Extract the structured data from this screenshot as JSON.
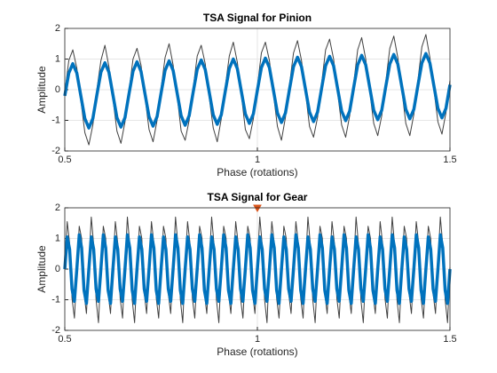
{
  "chart_data": [
    {
      "type": "line",
      "title": "TSA Signal for Pinion",
      "xlabel": "Phase (rotations)",
      "ylabel": "Amplitude",
      "xlim": [
        0.5,
        1.5
      ],
      "ylim": [
        -2,
        2
      ],
      "xticks": [
        0.5,
        1,
        1.5
      ],
      "yticks": [
        -2,
        -1,
        0,
        1,
        2
      ],
      "grid": true,
      "x": [
        0.5,
        0.5104,
        0.5208,
        0.5313,
        0.5417,
        0.5521,
        0.5625,
        0.5729,
        0.5833,
        0.5938,
        0.6042,
        0.6146,
        0.625,
        0.6354,
        0.6458,
        0.6563,
        0.6667,
        0.6771,
        0.6875,
        0.6979,
        0.7083,
        0.7188,
        0.7292,
        0.7396,
        0.75,
        0.7604,
        0.7708,
        0.7813,
        0.7917,
        0.8021,
        0.8125,
        0.8229,
        0.8333,
        0.8438,
        0.8542,
        0.8646,
        0.875,
        0.8854,
        0.8958,
        0.9063,
        0.9167,
        0.9271,
        0.9375,
        0.9479,
        0.9583,
        0.9688,
        0.9792,
        0.9896,
        1,
        1.0104,
        1.0208,
        1.0313,
        1.0417,
        1.0521,
        1.0625,
        1.0729,
        1.0833,
        1.0938,
        1.1042,
        1.1146,
        1.125,
        1.1354,
        1.1458,
        1.1563,
        1.1667,
        1.1771,
        1.1875,
        1.1979,
        1.2083,
        1.2188,
        1.2292,
        1.2396,
        1.25,
        1.2604,
        1.2708,
        1.2813,
        1.2917,
        1.3021,
        1.3125,
        1.3229,
        1.3333,
        1.3438,
        1.3542,
        1.3646,
        1.375,
        1.3854,
        1.3958,
        1.4063,
        1.4167,
        1.4271,
        1.4375,
        1.4479,
        1.4583,
        1.4688,
        1.4792,
        1.4896,
        1.5
      ],
      "series": [
        {
          "color": "#404040",
          "width": 1,
          "values": [
            -0.1,
            0.95,
            1.3,
            0.7,
            -0.35,
            -1.4,
            -1.8,
            -1.15,
            0.0,
            0.95,
            1.45,
            0.75,
            -0.3,
            -1.35,
            -1.75,
            -1.05,
            -0.05,
            1.0,
            1.35,
            0.8,
            -0.25,
            -1.3,
            -1.7,
            -1.0,
            0.05,
            1.05,
            1.5,
            0.8,
            -0.2,
            -1.35,
            -1.65,
            -1.0,
            0.05,
            1.1,
            1.45,
            0.85,
            -0.25,
            -1.25,
            -1.7,
            -0.95,
            0.1,
            1.1,
            1.55,
            0.9,
            -0.15,
            -1.3,
            -1.6,
            -0.95,
            0.1,
            1.2,
            1.55,
            0.95,
            -0.15,
            -1.2,
            -1.65,
            -0.9,
            0.15,
            1.2,
            1.6,
            0.95,
            -0.1,
            -1.2,
            -1.55,
            -0.9,
            0.2,
            1.3,
            1.65,
            1.0,
            -0.1,
            -1.15,
            -1.55,
            -0.85,
            0.2,
            1.3,
            1.7,
            1.0,
            -0.05,
            -1.1,
            -1.5,
            -0.85,
            0.25,
            1.35,
            1.75,
            1.05,
            0.0,
            -1.1,
            -1.5,
            -0.8,
            0.3,
            1.4,
            1.8,
            1.05,
            0.0,
            -1.05,
            -1.45,
            -0.75,
            0.3
          ]
        },
        {
          "color": "#0072bd",
          "width": 3.5,
          "values": [
            -0.2,
            0.54,
            0.85,
            0.54,
            -0.2,
            -0.94,
            -1.25,
            -0.94,
            -0.17,
            0.57,
            0.88,
            0.57,
            -0.17,
            -0.91,
            -1.22,
            -0.91,
            -0.14,
            0.6,
            0.91,
            0.6,
            -0.14,
            -0.88,
            -1.19,
            -0.88,
            -0.11,
            0.63,
            0.94,
            0.63,
            -0.11,
            -0.85,
            -1.16,
            -0.85,
            -0.08,
            0.66,
            0.97,
            0.66,
            -0.08,
            -0.82,
            -1.13,
            -0.82,
            -0.05,
            0.69,
            1.0,
            0.69,
            -0.05,
            -0.79,
            -1.1,
            -0.79,
            -0.02,
            0.72,
            1.03,
            0.72,
            -0.02,
            -0.76,
            -1.07,
            -0.76,
            0.01,
            0.75,
            1.06,
            0.75,
            0.01,
            -0.73,
            -1.04,
            -0.73,
            0.04,
            0.78,
            1.09,
            0.78,
            0.04,
            -0.7,
            -1.01,
            -0.7,
            0.07,
            0.81,
            1.12,
            0.81,
            0.07,
            -0.67,
            -0.98,
            -0.67,
            0.1,
            0.84,
            1.15,
            0.84,
            0.1,
            -0.64,
            -0.95,
            -0.64,
            0.13,
            0.87,
            1.18,
            0.87,
            0.13,
            -0.61,
            -0.92,
            -0.61,
            0.16
          ]
        }
      ]
    },
    {
      "type": "line",
      "title": "TSA Signal for Gear",
      "xlabel": "Phase (rotations)",
      "ylabel": "Amplitude",
      "xlim": [
        0.5,
        1.5
      ],
      "ylim": [
        -2,
        2
      ],
      "xticks": [
        0.5,
        1,
        1.5
      ],
      "yticks": [
        -2,
        -1,
        0,
        1,
        2
      ],
      "grid": true,
      "x": [
        0.5,
        0.50625,
        0.5125,
        0.51875,
        0.525,
        0.53125,
        0.5375,
        0.54375,
        0.55,
        0.55625,
        0.5625,
        0.56875,
        0.575,
        0.58125,
        0.5875,
        0.59375,
        0.6,
        0.60625,
        0.6125,
        0.61875,
        0.625,
        0.63125,
        0.6375,
        0.64375,
        0.65,
        0.65625,
        0.6625,
        0.66875,
        0.675,
        0.68125,
        0.6875,
        0.69375,
        0.7,
        0.70625,
        0.7125,
        0.71875,
        0.725,
        0.73125,
        0.7375,
        0.74375,
        0.75,
        0.75625,
        0.7625,
        0.76875,
        0.775,
        0.78125,
        0.7875,
        0.79375,
        0.8,
        0.80625,
        0.8125,
        0.81875,
        0.825,
        0.83125,
        0.8375,
        0.84375,
        0.85,
        0.85625,
        0.8625,
        0.86875,
        0.875,
        0.88125,
        0.8875,
        0.89375,
        0.9,
        0.90625,
        0.9125,
        0.91875,
        0.925,
        0.93125,
        0.9375,
        0.94375,
        0.95,
        0.95625,
        0.9625,
        0.96875,
        0.975,
        0.98125,
        0.9875,
        0.99375,
        1,
        1.00625,
        1.0125,
        1.01875,
        1.025,
        1.03125,
        1.0375,
        1.04375,
        1.05,
        1.05625,
        1.0625,
        1.06875,
        1.075,
        1.08125,
        1.0875,
        1.09375,
        1.1,
        1.10625,
        1.1125,
        1.11875,
        1.125,
        1.13125,
        1.1375,
        1.14375,
        1.15,
        1.15625,
        1.1625,
        1.16875,
        1.175,
        1.18125,
        1.1875,
        1.19375,
        1.2,
        1.20625,
        1.2125,
        1.21875,
        1.225,
        1.23125,
        1.2375,
        1.24375,
        1.25,
        1.25625,
        1.2625,
        1.26875,
        1.275,
        1.28125,
        1.2875,
        1.29375,
        1.3,
        1.30625,
        1.3125,
        1.31875,
        1.325,
        1.33125,
        1.3375,
        1.34375,
        1.35,
        1.35625,
        1.3625,
        1.36875,
        1.375,
        1.38125,
        1.3875,
        1.39375,
        1.4,
        1.40625,
        1.4125,
        1.41875,
        1.425,
        1.43125,
        1.4375,
        1.44375,
        1.45,
        1.45625,
        1.4625,
        1.46875,
        1.475,
        1.48125,
        1.4875,
        1.49375,
        1.5
      ],
      "series": [
        {
          "color": "#404040",
          "width": 1,
          "values": [
            0.1,
            1.55,
            0.85,
            -0.95,
            -1.6,
            -0.1,
            1.4,
            1.0,
            -0.8,
            -1.45,
            0.15,
            1.7,
            0.8,
            -1.0,
            -1.75,
            -0.1,
            1.4,
            1.0,
            -0.8,
            -1.45,
            0.1,
            1.55,
            0.85,
            -0.95,
            -1.6,
            0.15,
            1.7,
            0.8,
            -1.0,
            -1.75,
            -0.1,
            1.4,
            1.0,
            -0.8,
            -1.45,
            0.1,
            1.55,
            0.85,
            -0.95,
            -1.6,
            -0.1,
            1.4,
            1.0,
            -0.8,
            -1.45,
            0.15,
            1.7,
            0.8,
            -1.0,
            -1.75,
            0.1,
            1.55,
            0.85,
            -0.95,
            -1.6,
            -0.1,
            1.4,
            1.0,
            -0.8,
            -1.45,
            0.15,
            1.7,
            0.8,
            -1.0,
            -1.75,
            -0.1,
            1.4,
            1.0,
            -0.8,
            -1.45,
            0.1,
            1.55,
            0.85,
            -0.95,
            -1.6,
            -0.1,
            1.4,
            1.0,
            -0.8,
            -1.45,
            0.15,
            1.7,
            0.8,
            -1.0,
            -1.75,
            0.1,
            1.55,
            0.85,
            -0.95,
            -1.6,
            -0.1,
            1.4,
            1.0,
            -0.8,
            -1.45,
            0.1,
            1.55,
            0.85,
            -0.95,
            -1.6,
            0.15,
            1.7,
            0.8,
            -1.0,
            -1.75,
            -0.1,
            1.4,
            1.0,
            -0.8,
            -1.45,
            0.1,
            1.55,
            0.85,
            -0.95,
            -1.6,
            -0.1,
            1.4,
            1.0,
            -0.8,
            -1.45,
            0.15,
            1.7,
            0.8,
            -1.0,
            -1.75,
            -0.1,
            1.4,
            1.0,
            -0.8,
            -1.45,
            0.1,
            1.55,
            0.85,
            -0.95,
            -1.6,
            0.15,
            1.7,
            0.8,
            -1.0,
            -1.75,
            -0.1,
            1.4,
            1.0,
            -0.8,
            -1.45,
            0.1,
            1.55,
            0.85,
            -0.95,
            -1.6,
            -0.1,
            1.4,
            1.0,
            -0.8,
            -1.45,
            0.15,
            1.7,
            0.8,
            -1.0,
            -1.75,
            0.05
          ]
        },
        {
          "color": "#0072bd",
          "width": 3.5,
          "values": [
            0,
            1.05,
            0.65,
            -0.65,
            -1.05,
            0,
            1.12,
            0.69,
            -0.69,
            -1.12,
            0,
            1.05,
            0.65,
            -0.65,
            -1.05,
            0,
            1.12,
            0.69,
            -0.69,
            -1.12,
            0,
            1.05,
            0.65,
            -0.65,
            -1.05,
            0,
            1.12,
            0.69,
            -0.69,
            -1.12,
            0,
            1.05,
            0.65,
            -0.65,
            -1.05,
            0,
            1.12,
            0.69,
            -0.69,
            -1.12,
            0,
            1.05,
            0.65,
            -0.65,
            -1.05,
            0,
            1.12,
            0.69,
            -0.69,
            -1.12,
            0,
            1.05,
            0.65,
            -0.65,
            -1.05,
            0,
            1.12,
            0.69,
            -0.69,
            -1.12,
            0,
            1.05,
            0.65,
            -0.65,
            -1.05,
            0,
            1.12,
            0.69,
            -0.69,
            -1.12,
            0,
            1.05,
            0.65,
            -0.65,
            -1.05,
            0,
            1.12,
            0.69,
            -0.69,
            -1.12,
            0,
            1.05,
            0.65,
            -0.65,
            -1.05,
            0,
            1.12,
            0.69,
            -0.69,
            -1.12,
            0,
            1.05,
            0.65,
            -0.65,
            -1.05,
            0,
            1.12,
            0.69,
            -0.69,
            -1.12,
            0,
            1.05,
            0.65,
            -0.65,
            -1.05,
            0,
            1.12,
            0.69,
            -0.69,
            -1.12,
            0,
            1.05,
            0.65,
            -0.65,
            -1.05,
            0,
            1.12,
            0.69,
            -0.69,
            -1.12,
            0,
            1.05,
            0.65,
            -0.65,
            -1.05,
            0,
            1.12,
            0.69,
            -0.69,
            -1.12,
            0,
            1.05,
            0.65,
            -0.65,
            -1.05,
            0,
            1.12,
            0.69,
            -0.69,
            -1.12,
            0,
            1.05,
            0.65,
            -0.65,
            -1.05,
            0,
            1.12,
            0.69,
            -0.69,
            -1.12,
            0,
            1.05,
            0.65,
            -0.65,
            -1.05,
            0,
            1.12,
            0.69,
            -0.69,
            -1.12,
            0
          ]
        }
      ],
      "marker": {
        "x": 1,
        "y": 2,
        "color": "#d95319"
      }
    }
  ]
}
